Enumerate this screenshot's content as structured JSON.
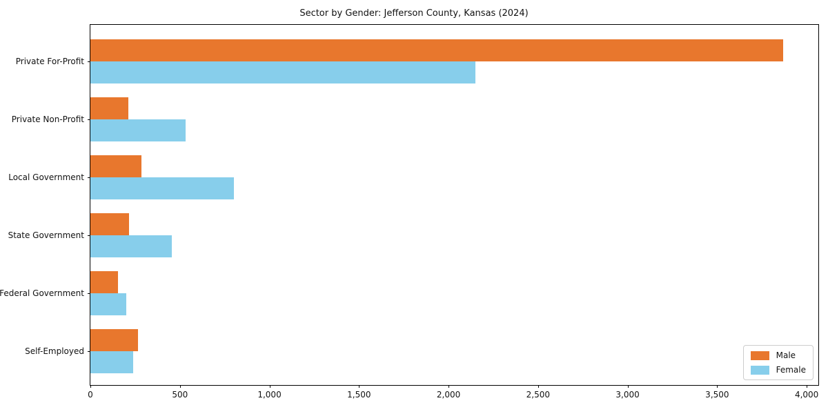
{
  "chart_data": {
    "type": "bar",
    "orientation": "horizontal",
    "title": "Sector by Gender: Jefferson County, Kansas (2024)",
    "categories": [
      "Private For-Profit",
      "Private Non-Profit",
      "Local Government",
      "State Government",
      "Federal Government",
      "Self-Employed"
    ],
    "series": [
      {
        "name": "Male",
        "color": "#e8772d",
        "values": [
          3870,
          210,
          285,
          215,
          155,
          265
        ]
      },
      {
        "name": "Female",
        "color": "#87ceeb",
        "values": [
          2150,
          530,
          800,
          455,
          200,
          240
        ]
      }
    ],
    "xlim": [
      0,
      4065
    ],
    "xticks": [
      0,
      500,
      1000,
      1500,
      2000,
      2500,
      3000,
      3500,
      4000
    ],
    "xtick_labels": [
      "0",
      "500",
      "1,000",
      "1,500",
      "2,000",
      "2,500",
      "3,000",
      "3,500",
      "4,000"
    ],
    "xlabel": "",
    "ylabel": "",
    "grid": false,
    "legend_position": "lower right",
    "legend_labels": [
      "Male",
      "Female"
    ]
  }
}
